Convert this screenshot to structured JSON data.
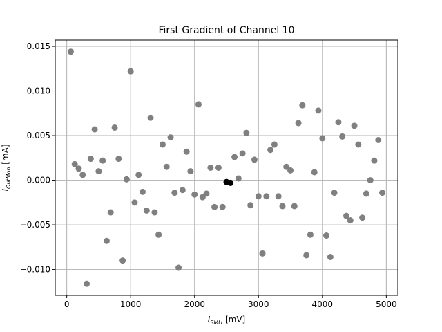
{
  "chart_data": {
    "type": "scatter",
    "title": "First Gradient of Channel 10",
    "xlabel": {
      "base": "I",
      "sub": "SMU",
      "unit": " [mV]"
    },
    "ylabel": {
      "base": "I",
      "sub": "OutMon",
      "unit": " [mA]"
    },
    "xlim": [
      -180,
      5180
    ],
    "ylim": [
      -0.0129,
      0.0157
    ],
    "xticks": [
      0,
      1000,
      2000,
      3000,
      4000,
      5000
    ],
    "xtick_labels": [
      "0",
      "1000",
      "2000",
      "3000",
      "4000",
      "5000"
    ],
    "yticks": [
      -0.01,
      -0.005,
      0.0,
      0.005,
      0.01,
      0.015
    ],
    "ytick_labels": [
      "−0.010",
      "−0.005",
      "0.000",
      "0.005",
      "0.010",
      "0.015"
    ],
    "grid": true,
    "colors": {
      "grey_points": "#808080",
      "black_points": "#000000",
      "grid": "#b0b0b0"
    },
    "series": [
      {
        "color": "#808080",
        "points": [
          [
            62,
            0.0144
          ],
          [
            125,
            0.0018
          ],
          [
            187,
            0.0013
          ],
          [
            250,
            0.0006
          ],
          [
            312,
            -0.0116
          ],
          [
            375,
            0.0024
          ],
          [
            437,
            0.0057
          ],
          [
            500,
            0.001
          ],
          [
            562,
            0.0022
          ],
          [
            625,
            -0.0068
          ],
          [
            687,
            -0.0036
          ],
          [
            750,
            0.0059
          ],
          [
            812,
            0.0024
          ],
          [
            875,
            -0.009
          ],
          [
            937,
            0.0001
          ],
          [
            1000,
            0.0122
          ],
          [
            1062,
            -0.0025
          ],
          [
            1125,
            0.0006
          ],
          [
            1187,
            -0.0013
          ],
          [
            1250,
            -0.0034
          ],
          [
            1312,
            0.007
          ],
          [
            1375,
            -0.0036
          ],
          [
            1437,
            -0.0061
          ],
          [
            1500,
            0.004
          ],
          [
            1562,
            0.0015
          ],
          [
            1625,
            0.0048
          ],
          [
            1687,
            -0.0014
          ],
          [
            1750,
            -0.0098
          ],
          [
            1812,
            -0.0011
          ],
          [
            1875,
            0.0032
          ],
          [
            1937,
            0.001
          ],
          [
            2000,
            -0.0016
          ],
          [
            2062,
            0.0085
          ],
          [
            2125,
            -0.0019
          ],
          [
            2187,
            -0.0015
          ],
          [
            2250,
            0.0014
          ],
          [
            2312,
            -0.003
          ],
          [
            2375,
            0.0014
          ],
          [
            2437,
            -0.003
          ],
          [
            2625,
            0.0026
          ],
          [
            2687,
            0.0002
          ],
          [
            2750,
            0.003
          ],
          [
            2812,
            0.0053
          ],
          [
            2875,
            -0.0028
          ],
          [
            2937,
            0.0023
          ],
          [
            3000,
            -0.0018
          ],
          [
            3062,
            -0.0082
          ],
          [
            3125,
            -0.0018
          ],
          [
            3187,
            0.0034
          ],
          [
            3250,
            0.004
          ],
          [
            3312,
            -0.0018
          ],
          [
            3375,
            -0.0029
          ],
          [
            3437,
            0.0015
          ],
          [
            3500,
            0.0011
          ],
          [
            3562,
            -0.0029
          ],
          [
            3625,
            0.0064
          ],
          [
            3687,
            0.0084
          ],
          [
            3750,
            -0.0084
          ],
          [
            3812,
            -0.0061
          ],
          [
            3875,
            0.0009
          ],
          [
            3937,
            0.0078
          ],
          [
            4000,
            0.0047
          ],
          [
            4062,
            -0.0062
          ],
          [
            4125,
            -0.0086
          ],
          [
            4187,
            -0.0014
          ],
          [
            4250,
            0.0065
          ],
          [
            4312,
            0.0049
          ],
          [
            4375,
            -0.004
          ],
          [
            4437,
            -0.0045
          ],
          [
            4500,
            0.0061
          ],
          [
            4562,
            0.004
          ],
          [
            4625,
            -0.0042
          ],
          [
            4687,
            -0.0015
          ],
          [
            4750,
            0.0
          ],
          [
            4812,
            0.0022
          ],
          [
            4875,
            0.0045
          ],
          [
            4937,
            -0.0014
          ]
        ]
      },
      {
        "color": "#000000",
        "points": [
          [
            2500,
            -0.0002
          ],
          [
            2562,
            -0.0003
          ]
        ]
      }
    ]
  }
}
